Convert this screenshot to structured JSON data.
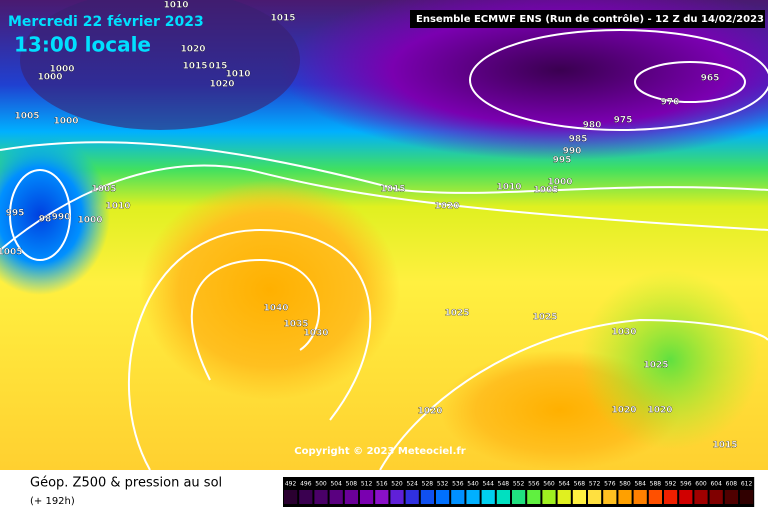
{
  "header": {
    "date": "Mercredi 22 février 2023",
    "time": "13:00 locale",
    "run": "Ensemble ECMWF ENS  (Run de contrôle)  -  12 Z du 14/02/2023"
  },
  "isobar_labels": [
    "1015",
    "1010",
    "1020",
    "1015",
    "015",
    "1010",
    "1020",
    "1000",
    "1000",
    "1005",
    "1000",
    "995",
    "98",
    "990",
    "1000",
    "1005",
    "1010",
    "1005",
    "1015",
    "1020",
    "1010",
    "1005",
    "1000",
    "995",
    "990",
    "985",
    "980",
    "975",
    "970",
    "965",
    "1040",
    "1035",
    "1030",
    "1025",
    "1025",
    "1030",
    "1025",
    "1020",
    "1020",
    "1020",
    "1015"
  ],
  "copyright": "Copyright © 2023 Meteociel.fr",
  "footer": {
    "title": "Géop. Z500 & pression au sol",
    "lead": "(+ 192h)"
  },
  "colorbar": {
    "labels": [
      492,
      496,
      500,
      504,
      508,
      512,
      516,
      520,
      524,
      528,
      532,
      536,
      540,
      544,
      548,
      552,
      556,
      560,
      564,
      568,
      572,
      576,
      580,
      584,
      588,
      592,
      596,
      600,
      604,
      608,
      612
    ],
    "colors": [
      "#2a0030",
      "#3a0050",
      "#4a0068",
      "#5a0080",
      "#6a0098",
      "#7a00b0",
      "#8a10c8",
      "#6020d8",
      "#3030e0",
      "#1050f0",
      "#0070ff",
      "#0090ff",
      "#00b0ff",
      "#00d0f0",
      "#00e0c0",
      "#20e080",
      "#60f040",
      "#a0f020",
      "#e0f020",
      "#fff040",
      "#ffe040",
      "#ffc020",
      "#ffa000",
      "#ff8000",
      "#ff5000",
      "#f02000",
      "#d00000",
      "#a00000",
      "#800000",
      "#500000",
      "#300000"
    ]
  }
}
